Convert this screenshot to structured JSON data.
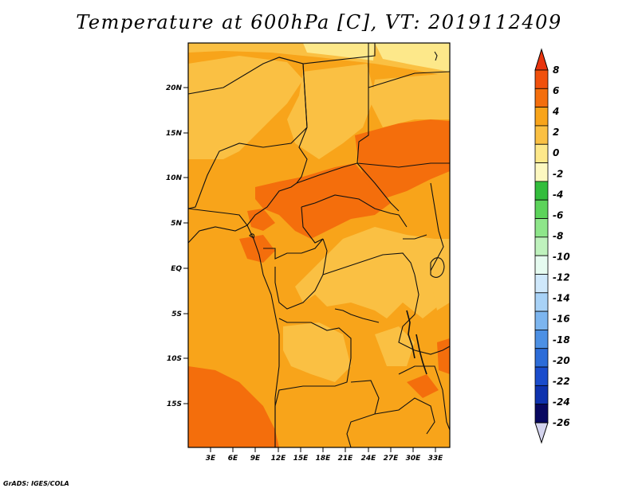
{
  "title": "Temperature at 600hPa [C], VT: 2019112409",
  "credit": "GrADS: IGES/COLA",
  "map": {
    "lat_labels": [
      "20N",
      "15N",
      "10N",
      "5N",
      "EQ",
      "5S",
      "10S",
      "15S"
    ],
    "lon_labels": [
      "3E",
      "6E",
      "9E",
      "12E",
      "15E",
      "18E",
      "21E",
      "24E",
      "27E",
      "30E",
      "33E"
    ],
    "lat_range": [
      -20,
      25
    ],
    "lon_range": [
      0,
      35
    ],
    "dominant_temperature_c": "2 to 4",
    "warm_core_temperature_c": "4 to 6"
  },
  "colorbar": {
    "labels": [
      "8",
      "6",
      "4",
      "2",
      "0",
      "-2",
      "-4",
      "-6",
      "-8",
      "-10",
      "-12",
      "-14",
      "-16",
      "-18",
      "-20",
      "-22",
      "-24",
      "-26"
    ],
    "colors": [
      "#e8340e",
      "#f0500c",
      "#f46e0c",
      "#f8a41a",
      "#fac043",
      "#fde88a",
      "#fdf8c0",
      "#33bd3c",
      "#5cd35a",
      "#8ee68a",
      "#bff2bd",
      "#e6fbf0",
      "#cfe8fb",
      "#a8d2f7",
      "#7cb5ef",
      "#4c90e4",
      "#2c6cd8",
      "#1a4ccc",
      "#0e32ae",
      "#080860",
      "#d4d4ee"
    ],
    "top_triangle_color": "#e8340e",
    "bottom_triangle_color": "#d4d4ee"
  }
}
